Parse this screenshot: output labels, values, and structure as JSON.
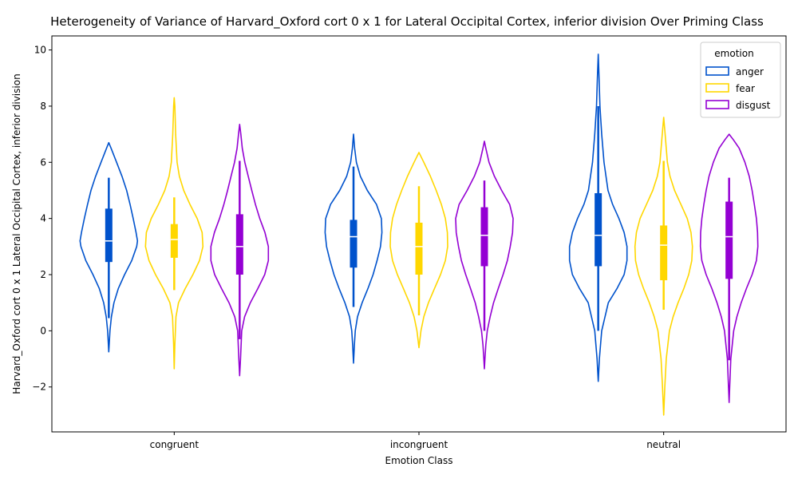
{
  "chart_data": {
    "type": "violin",
    "title": "Heterogeneity of Variance of Harvard_Oxford cort 0 x 1 for Lateral Occipital Cortex, inferior division Over Priming Class",
    "xlabel": "Emotion Class",
    "ylabel": "Harvard_Oxford cort 0 x 1 Lateral Occipital Cortex, inferior division",
    "categories": [
      "congruent",
      "incongruent",
      "neutral"
    ],
    "ylim": [
      -3.6,
      10.5
    ],
    "yticks": [
      -2,
      0,
      2,
      4,
      6,
      8,
      10
    ],
    "ytick_labels": [
      "−2",
      "0",
      "2",
      "4",
      "6",
      "8",
      "10"
    ],
    "grid": false,
    "legend": {
      "title": "emotion",
      "placement": "top-right"
    },
    "series": [
      {
        "name": "anger",
        "color": "#0052cc",
        "violins": [
          {
            "category": "congruent",
            "min": -0.75,
            "max": 6.7,
            "q1": 2.45,
            "median": 3.2,
            "q3": 4.35,
            "whisker_low": 0.45,
            "whisker_high": 5.45,
            "profile": [
              [
                -0.75,
                0.0
              ],
              [
                0.0,
                0.04
              ],
              [
                0.5,
                0.09
              ],
              [
                1.0,
                0.18
              ],
              [
                1.5,
                0.33
              ],
              [
                2.0,
                0.55
              ],
              [
                2.5,
                0.8
              ],
              [
                3.0,
                0.97
              ],
              [
                3.2,
                1.0
              ],
              [
                3.5,
                0.95
              ],
              [
                4.0,
                0.85
              ],
              [
                4.5,
                0.74
              ],
              [
                5.0,
                0.62
              ],
              [
                5.5,
                0.46
              ],
              [
                6.0,
                0.27
              ],
              [
                6.5,
                0.08
              ],
              [
                6.7,
                0.0
              ]
            ]
          },
          {
            "category": "incongruent",
            "min": -1.15,
            "max": 7.0,
            "q1": 2.25,
            "median": 3.35,
            "q3": 3.95,
            "whisker_low": 0.85,
            "whisker_high": 5.85,
            "profile": [
              [
                -1.15,
                0.0
              ],
              [
                -0.5,
                0.03
              ],
              [
                0.0,
                0.06
              ],
              [
                0.5,
                0.14
              ],
              [
                1.0,
                0.3
              ],
              [
                1.5,
                0.5
              ],
              [
                2.0,
                0.68
              ],
              [
                2.5,
                0.82
              ],
              [
                3.0,
                0.94
              ],
              [
                3.5,
                0.99
              ],
              [
                4.0,
                0.97
              ],
              [
                4.5,
                0.8
              ],
              [
                5.0,
                0.48
              ],
              [
                5.5,
                0.24
              ],
              [
                6.0,
                0.1
              ],
              [
                6.5,
                0.04
              ],
              [
                7.0,
                0.0
              ]
            ]
          },
          {
            "category": "neutral",
            "min": -1.8,
            "max": 9.85,
            "q1": 2.3,
            "median": 3.4,
            "q3": 4.9,
            "whisker_low": 0.0,
            "whisker_high": 8.0,
            "profile": [
              [
                -1.8,
                0.0
              ],
              [
                -1.0,
                0.04
              ],
              [
                0.0,
                0.12
              ],
              [
                1.0,
                0.35
              ],
              [
                1.5,
                0.65
              ],
              [
                2.0,
                0.9
              ],
              [
                2.5,
                1.0
              ],
              [
                3.0,
                1.0
              ],
              [
                3.5,
                0.9
              ],
              [
                4.0,
                0.72
              ],
              [
                4.5,
                0.5
              ],
              [
                5.0,
                0.34
              ],
              [
                6.0,
                0.2
              ],
              [
                7.0,
                0.12
              ],
              [
                8.0,
                0.06
              ],
              [
                9.0,
                0.03
              ],
              [
                9.85,
                0.0
              ]
            ]
          }
        ]
      },
      {
        "name": "fear",
        "color": "#ffd700",
        "violins": [
          {
            "category": "congruent",
            "min": -1.35,
            "max": 8.3,
            "q1": 2.6,
            "median": 3.25,
            "q3": 3.8,
            "whisker_low": 1.45,
            "whisker_high": 4.75,
            "profile": [
              [
                -1.35,
                0.0
              ],
              [
                -0.5,
                0.02
              ],
              [
                0.5,
                0.06
              ],
              [
                1.0,
                0.15
              ],
              [
                1.5,
                0.38
              ],
              [
                2.0,
                0.65
              ],
              [
                2.5,
                0.88
              ],
              [
                3.0,
                1.0
              ],
              [
                3.5,
                0.97
              ],
              [
                4.0,
                0.8
              ],
              [
                4.5,
                0.55
              ],
              [
                5.0,
                0.33
              ],
              [
                5.5,
                0.18
              ],
              [
                6.0,
                0.1
              ],
              [
                7.0,
                0.05
              ],
              [
                8.0,
                0.02
              ],
              [
                8.3,
                0.0
              ]
            ]
          },
          {
            "category": "incongruent",
            "min": -0.6,
            "max": 6.35,
            "q1": 2.0,
            "median": 3.0,
            "q3": 3.85,
            "whisker_low": 0.55,
            "whisker_high": 5.15,
            "profile": [
              [
                -0.6,
                0.0
              ],
              [
                0.0,
                0.07
              ],
              [
                0.5,
                0.17
              ],
              [
                1.0,
                0.33
              ],
              [
                1.5,
                0.54
              ],
              [
                2.0,
                0.75
              ],
              [
                2.5,
                0.92
              ],
              [
                3.0,
                1.0
              ],
              [
                3.5,
                0.99
              ],
              [
                4.0,
                0.92
              ],
              [
                4.5,
                0.78
              ],
              [
                5.0,
                0.6
              ],
              [
                5.5,
                0.4
              ],
              [
                6.0,
                0.17
              ],
              [
                6.35,
                0.0
              ]
            ]
          },
          {
            "category": "neutral",
            "min": -3.0,
            "max": 7.6,
            "q1": 1.8,
            "median": 3.05,
            "q3": 3.75,
            "whisker_low": 0.75,
            "whisker_high": 6.05,
            "profile": [
              [
                -3.0,
                0.0
              ],
              [
                -2.0,
                0.04
              ],
              [
                -1.0,
                0.09
              ],
              [
                0.0,
                0.2
              ],
              [
                0.5,
                0.33
              ],
              [
                1.0,
                0.5
              ],
              [
                1.5,
                0.7
              ],
              [
                2.0,
                0.87
              ],
              [
                2.5,
                0.98
              ],
              [
                3.0,
                1.0
              ],
              [
                3.5,
                0.95
              ],
              [
                4.0,
                0.82
              ],
              [
                4.5,
                0.6
              ],
              [
                5.0,
                0.38
              ],
              [
                5.5,
                0.22
              ],
              [
                6.0,
                0.13
              ],
              [
                7.0,
                0.05
              ],
              [
                7.6,
                0.0
              ]
            ]
          }
        ]
      },
      {
        "name": "disgust",
        "color": "#9400d3",
        "violins": [
          {
            "category": "congruent",
            "min": -1.6,
            "max": 7.35,
            "q1": 2.0,
            "median": 3.0,
            "q3": 4.15,
            "whisker_low": -0.3,
            "whisker_high": 6.05,
            "profile": [
              [
                -1.6,
                0.0
              ],
              [
                -1.0,
                0.03
              ],
              [
                0.0,
                0.07
              ],
              [
                0.5,
                0.17
              ],
              [
                1.0,
                0.37
              ],
              [
                1.5,
                0.63
              ],
              [
                2.0,
                0.87
              ],
              [
                2.5,
                1.0
              ],
              [
                3.0,
                1.0
              ],
              [
                3.5,
                0.88
              ],
              [
                4.0,
                0.7
              ],
              [
                4.5,
                0.55
              ],
              [
                5.0,
                0.42
              ],
              [
                5.5,
                0.3
              ],
              [
                6.0,
                0.18
              ],
              [
                6.5,
                0.09
              ],
              [
                7.0,
                0.04
              ],
              [
                7.35,
                0.0
              ]
            ]
          },
          {
            "category": "incongruent",
            "min": -1.35,
            "max": 6.75,
            "q1": 2.3,
            "median": 3.4,
            "q3": 4.4,
            "whisker_low": 0.0,
            "whisker_high": 5.35,
            "profile": [
              [
                -1.35,
                0.0
              ],
              [
                -1.0,
                0.02
              ],
              [
                -0.5,
                0.05
              ],
              [
                0.0,
                0.1
              ],
              [
                0.5,
                0.2
              ],
              [
                1.0,
                0.32
              ],
              [
                1.5,
                0.48
              ],
              [
                2.0,
                0.65
              ],
              [
                2.5,
                0.8
              ],
              [
                3.0,
                0.9
              ],
              [
                3.5,
                0.98
              ],
              [
                4.0,
                1.0
              ],
              [
                4.5,
                0.88
              ],
              [
                5.0,
                0.6
              ],
              [
                5.5,
                0.35
              ],
              [
                6.0,
                0.16
              ],
              [
                6.5,
                0.05
              ],
              [
                6.75,
                0.0
              ]
            ]
          },
          {
            "category": "neutral",
            "min": -2.55,
            "max": 7.0,
            "q1": 1.85,
            "median": 3.35,
            "q3": 4.6,
            "whisker_low": -1.05,
            "whisker_high": 5.45,
            "profile": [
              [
                -2.55,
                0.0
              ],
              [
                -2.0,
                0.02
              ],
              [
                -1.0,
                0.06
              ],
              [
                0.0,
                0.16
              ],
              [
                0.5,
                0.27
              ],
              [
                1.0,
                0.42
              ],
              [
                1.5,
                0.6
              ],
              [
                2.0,
                0.8
              ],
              [
                2.5,
                0.95
              ],
              [
                3.0,
                1.0
              ],
              [
                3.5,
                0.99
              ],
              [
                4.0,
                0.95
              ],
              [
                4.5,
                0.88
              ],
              [
                5.0,
                0.8
              ],
              [
                5.5,
                0.7
              ],
              [
                6.0,
                0.55
              ],
              [
                6.5,
                0.35
              ],
              [
                6.8,
                0.15
              ],
              [
                7.0,
                0.0
              ]
            ]
          }
        ]
      }
    ]
  }
}
